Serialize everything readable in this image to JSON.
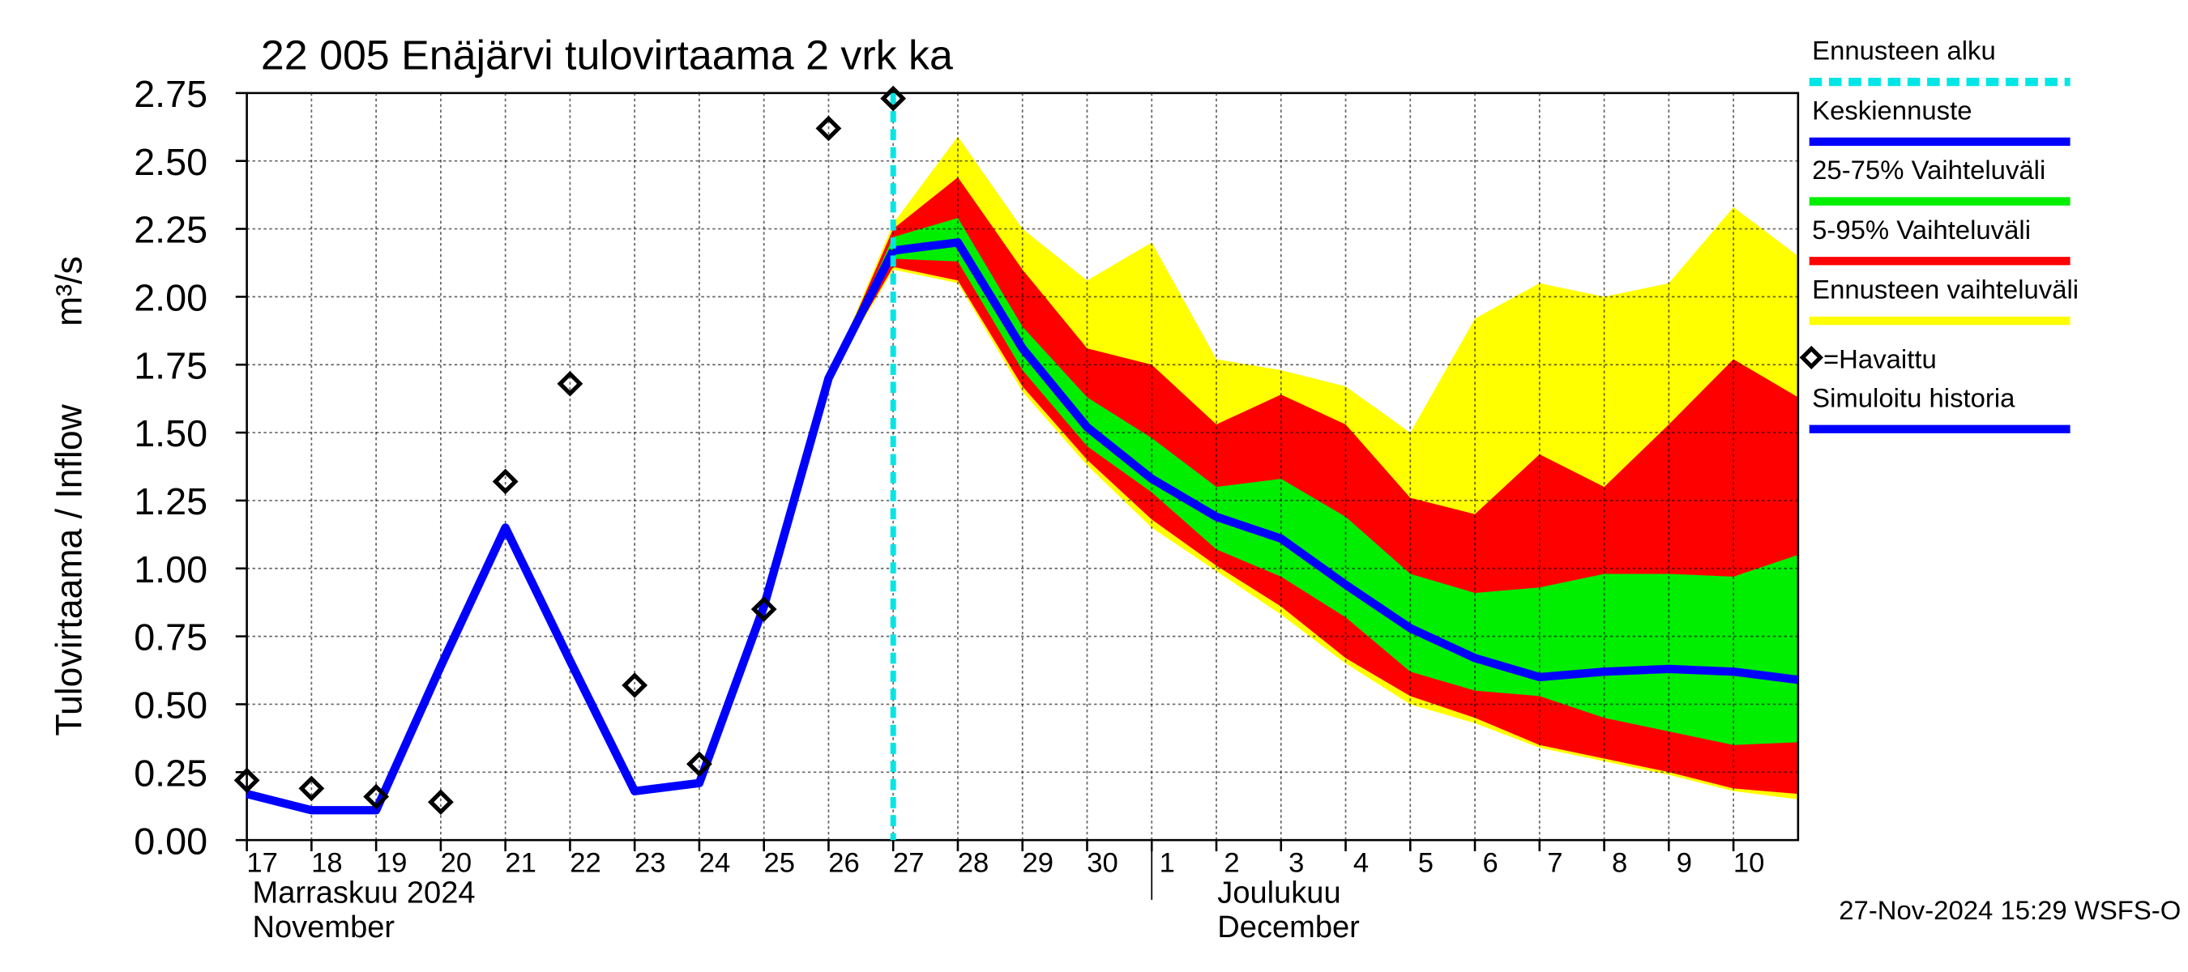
{
  "chart_data": {
    "type": "line",
    "title": "22 005 Enäjärvi tulovirtaama 2 vrk ka",
    "y_label": "Tulovirtaama / Inflow",
    "y_unit": "m³/s",
    "month_labels": [
      "Marraskuu 2024",
      "November",
      "Joulukuu",
      "December"
    ],
    "footer": "27-Nov-2024 15:29 WSFS-O",
    "ylim": [
      0,
      2.75
    ],
    "yticks": [
      {
        "value": 0,
        "label": "0.00"
      },
      {
        "value": 0.25,
        "label": "0.25"
      },
      {
        "value": 0.5,
        "label": "0.50"
      },
      {
        "value": 0.75,
        "label": "0.75"
      },
      {
        "value": 1,
        "label": "1.00"
      },
      {
        "value": 1.25,
        "label": "1.25"
      },
      {
        "value": 1.5,
        "label": "1.50"
      },
      {
        "value": 1.75,
        "label": "1.75"
      },
      {
        "value": 2,
        "label": "2.00"
      },
      {
        "value": 2.25,
        "label": "2.25"
      },
      {
        "value": 2.5,
        "label": "2.50"
      },
      {
        "value": 2.75,
        "label": "2.75"
      }
    ],
    "xlim": [
      "2024-11-17",
      "2024-12-11"
    ],
    "xticks": [
      {
        "value": "2024-11-17",
        "label": "17"
      },
      {
        "value": "2024-11-18",
        "label": "18"
      },
      {
        "value": "2024-11-19",
        "label": "19"
      },
      {
        "value": "2024-11-20",
        "label": "20"
      },
      {
        "value": "2024-11-21",
        "label": "21"
      },
      {
        "value": "2024-11-22",
        "label": "22"
      },
      {
        "value": "2024-11-23",
        "label": "23"
      },
      {
        "value": "2024-11-24",
        "label": "24"
      },
      {
        "value": "2024-11-25",
        "label": "25"
      },
      {
        "value": "2024-11-26",
        "label": "26"
      },
      {
        "value": "2024-11-27",
        "label": "27"
      },
      {
        "value": "2024-11-28",
        "label": "28"
      },
      {
        "value": "2024-11-29",
        "label": "29"
      },
      {
        "value": "2024-11-30",
        "label": "30"
      },
      {
        "value": "2024-12-01",
        "label": "1"
      },
      {
        "value": "2024-12-02",
        "label": "2"
      },
      {
        "value": "2024-12-03",
        "label": "3"
      },
      {
        "value": "2024-12-04",
        "label": "4"
      },
      {
        "value": "2024-12-05",
        "label": "5"
      },
      {
        "value": "2024-12-06",
        "label": "6"
      },
      {
        "value": "2024-12-07",
        "label": "7"
      },
      {
        "value": "2024-12-08",
        "label": "8"
      },
      {
        "value": "2024-12-09",
        "label": "9"
      },
      {
        "value": "2024-12-10",
        "label": "10"
      }
    ],
    "month_divider": "2024-12-01",
    "grid": true,
    "forecast_start": {
      "name": "Ennusteen alku",
      "x": "2024-11-27",
      "color": "#00e5e5"
    },
    "bands": [
      {
        "name": "Ennusteen vaihteluväli",
        "color": "#ffff00",
        "x": [
          "2024-11-26",
          "2024-11-27",
          "2024-11-28",
          "2024-11-29",
          "2024-11-30",
          "2024-12-01",
          "2024-12-02",
          "2024-12-03",
          "2024-12-04",
          "2024-12-05",
          "2024-12-06",
          "2024-12-07",
          "2024-12-08",
          "2024-12-09",
          "2024-12-10",
          "2024-12-11"
        ],
        "upper": [
          1.7,
          2.27,
          2.59,
          2.25,
          2.06,
          2.2,
          1.77,
          1.73,
          1.67,
          1.5,
          1.92,
          2.05,
          2.0,
          2.05,
          2.33,
          2.15
        ],
        "lower": [
          1.7,
          2.1,
          2.05,
          1.65,
          1.38,
          1.15,
          0.99,
          0.83,
          0.65,
          0.5,
          0.43,
          0.34,
          0.29,
          0.24,
          0.18,
          0.15
        ]
      },
      {
        "name": "5-95% Vaihteluväli",
        "color": "#ff0000",
        "x": [
          "2024-11-26",
          "2024-11-27",
          "2024-11-28",
          "2024-11-29",
          "2024-11-30",
          "2024-12-01",
          "2024-12-02",
          "2024-12-03",
          "2024-12-04",
          "2024-12-05",
          "2024-12-06",
          "2024-12-07",
          "2024-12-08",
          "2024-12-09",
          "2024-12-10",
          "2024-12-11"
        ],
        "upper": [
          1.7,
          2.25,
          2.44,
          2.1,
          1.81,
          1.75,
          1.53,
          1.64,
          1.53,
          1.26,
          1.2,
          1.42,
          1.3,
          1.53,
          1.77,
          1.63
        ],
        "lower": [
          1.7,
          2.11,
          2.06,
          1.67,
          1.4,
          1.18,
          1.01,
          0.86,
          0.67,
          0.53,
          0.45,
          0.35,
          0.3,
          0.25,
          0.19,
          0.17
        ]
      },
      {
        "name": "25-75% Vaihteluväli",
        "color": "#00ee00",
        "x": [
          "2024-11-26",
          "2024-11-27",
          "2024-11-28",
          "2024-11-29",
          "2024-11-30",
          "2024-12-01",
          "2024-12-02",
          "2024-12-03",
          "2024-12-04",
          "2024-12-05",
          "2024-12-06",
          "2024-12-07",
          "2024-12-08",
          "2024-12-09",
          "2024-12-10",
          "2024-12-11"
        ],
        "upper": [
          1.7,
          2.22,
          2.29,
          1.89,
          1.63,
          1.48,
          1.3,
          1.33,
          1.19,
          0.98,
          0.91,
          0.93,
          0.98,
          0.98,
          0.97,
          1.05
        ],
        "lower": [
          1.7,
          2.14,
          2.13,
          1.73,
          1.45,
          1.28,
          1.07,
          0.97,
          0.82,
          0.62,
          0.55,
          0.53,
          0.45,
          0.4,
          0.35,
          0.36
        ]
      }
    ],
    "series": [
      {
        "name": "Keskiennuste",
        "color": "#0000ff",
        "x": [
          "2024-11-27",
          "2024-11-28",
          "2024-11-29",
          "2024-11-30",
          "2024-12-01",
          "2024-12-02",
          "2024-12-03",
          "2024-12-04",
          "2024-12-05",
          "2024-12-06",
          "2024-12-07",
          "2024-12-08",
          "2024-12-09",
          "2024-12-10",
          "2024-12-11"
        ],
        "values": [
          2.17,
          2.2,
          1.81,
          1.52,
          1.33,
          1.19,
          1.11,
          0.94,
          0.78,
          0.67,
          0.6,
          0.62,
          0.63,
          0.62,
          0.59
        ]
      },
      {
        "name": "Simuloitu historia",
        "color": "#0000ff",
        "x": [
          "2024-11-17",
          "2024-11-18",
          "2024-11-19",
          "2024-11-20",
          "2024-11-21",
          "2024-11-22",
          "2024-11-23",
          "2024-11-24",
          "2024-11-25",
          "2024-11-26",
          "2024-11-27"
        ],
        "values": [
          0.17,
          0.11,
          0.11,
          0.64,
          1.15,
          0.66,
          0.18,
          0.21,
          0.86,
          1.7,
          2.17
        ]
      }
    ],
    "observed": {
      "name": "=Havaittu",
      "x": [
        "2024-11-17",
        "2024-11-18",
        "2024-11-19",
        "2024-11-20",
        "2024-11-21",
        "2024-11-22",
        "2024-11-23",
        "2024-11-24",
        "2024-11-25",
        "2024-11-26",
        "2024-11-27"
      ],
      "values": [
        0.22,
        0.19,
        0.16,
        0.14,
        1.32,
        1.68,
        0.57,
        0.28,
        0.85,
        2.62,
        2.73
      ]
    }
  }
}
